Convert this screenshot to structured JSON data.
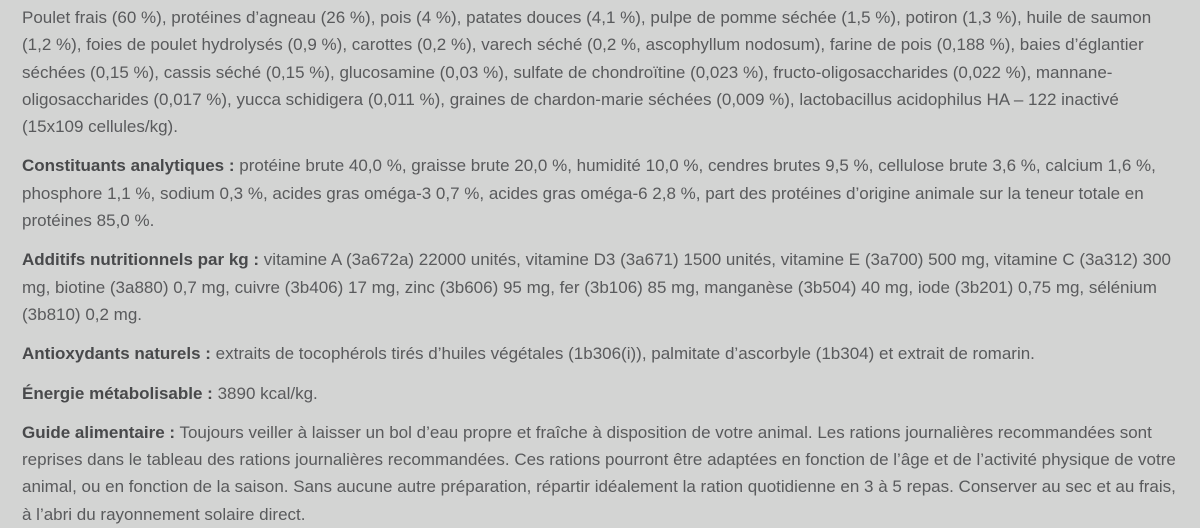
{
  "page": {
    "background_color": "#d3d4d3",
    "text_color": "#595a5c",
    "label_color": "#48494b"
  },
  "sections": [
    {
      "label": "",
      "text": "Poulet frais (60 %), protéines d’agneau (26 %), pois (4 %), patates douces (4,1 %), pulpe de pomme séchée (1,5 %), potiron (1,3 %), huile de saumon (1,2 %), foies de poulet hydrolysés (0,9 %), carottes (0,2 %), varech séché (0,2 %, ascophyllum nodosum), farine de pois (0,188 %), baies d’églantier séchées (0,15 %), cassis séché (0,15 %), glucosamine (0,03 %), sulfate de chondroïtine (0,023 %), fructo-oligosaccharides (0,022 %), mannane-oligosaccharides (0,017 %), yucca schidigera (0,011 %), graines de chardon-marie séchées (0,009 %), lactobacillus acidophilus HA – 122 inactivé (15x109 cellules/kg)."
    },
    {
      "label": "Constituants analytiques :",
      "text": "protéine brute 40,0 %, graisse brute 20,0 %, humidité 10,0 %, cendres brutes 9,5 %, cellulose brute 3,6 %, calcium 1,6 %, phosphore 1,1 %, sodium 0,3 %, acides gras oméga-3 0,7 %, acides gras oméga-6 2,8 %, part des protéines d’origine animale sur la teneur totale en protéines 85,0 %."
    },
    {
      "label": "Additifs nutritionnels par kg :",
      "text": "vitamine A (3a672a) 22000 unités, vitamine D3 (3a671) 1500 unités, vitamine E (3a700) 500 mg, vitamine C (3a312) 300 mg, biotine (3a880) 0,7 mg, cuivre (3b406) 17 mg, zinc (3b606) 95 mg, fer (3b106) 85 mg, manganèse (3b504) 40 mg, iode (3b201) 0,75 mg, sélénium (3b810) 0,2 mg."
    },
    {
      "label": "Antioxydants naturels :",
      "text": "extraits de tocophérols tirés d’huiles végétales (1b306(i)), palmitate d’ascorbyle (1b304) et extrait de romarin."
    },
    {
      "label": "Énergie métabolisable :",
      "text": "3890 kcal/kg."
    },
    {
      "label": "Guide alimentaire :",
      "text": "Toujours veiller à laisser un bol d’eau propre et fraîche à disposition de votre animal. Les rations journalières recommandées sont reprises dans le tableau des rations journalières recommandées. Ces rations pourront être adaptées en fonction de l’âge et de l’activité physique de votre animal, ou en fonction de la saison. Sans aucune autre préparation, répartir idéalement la ration quotidienne en 3 à 5 repas. Conserver au sec et au frais, à l’abri du rayonnement solaire direct."
    }
  ]
}
